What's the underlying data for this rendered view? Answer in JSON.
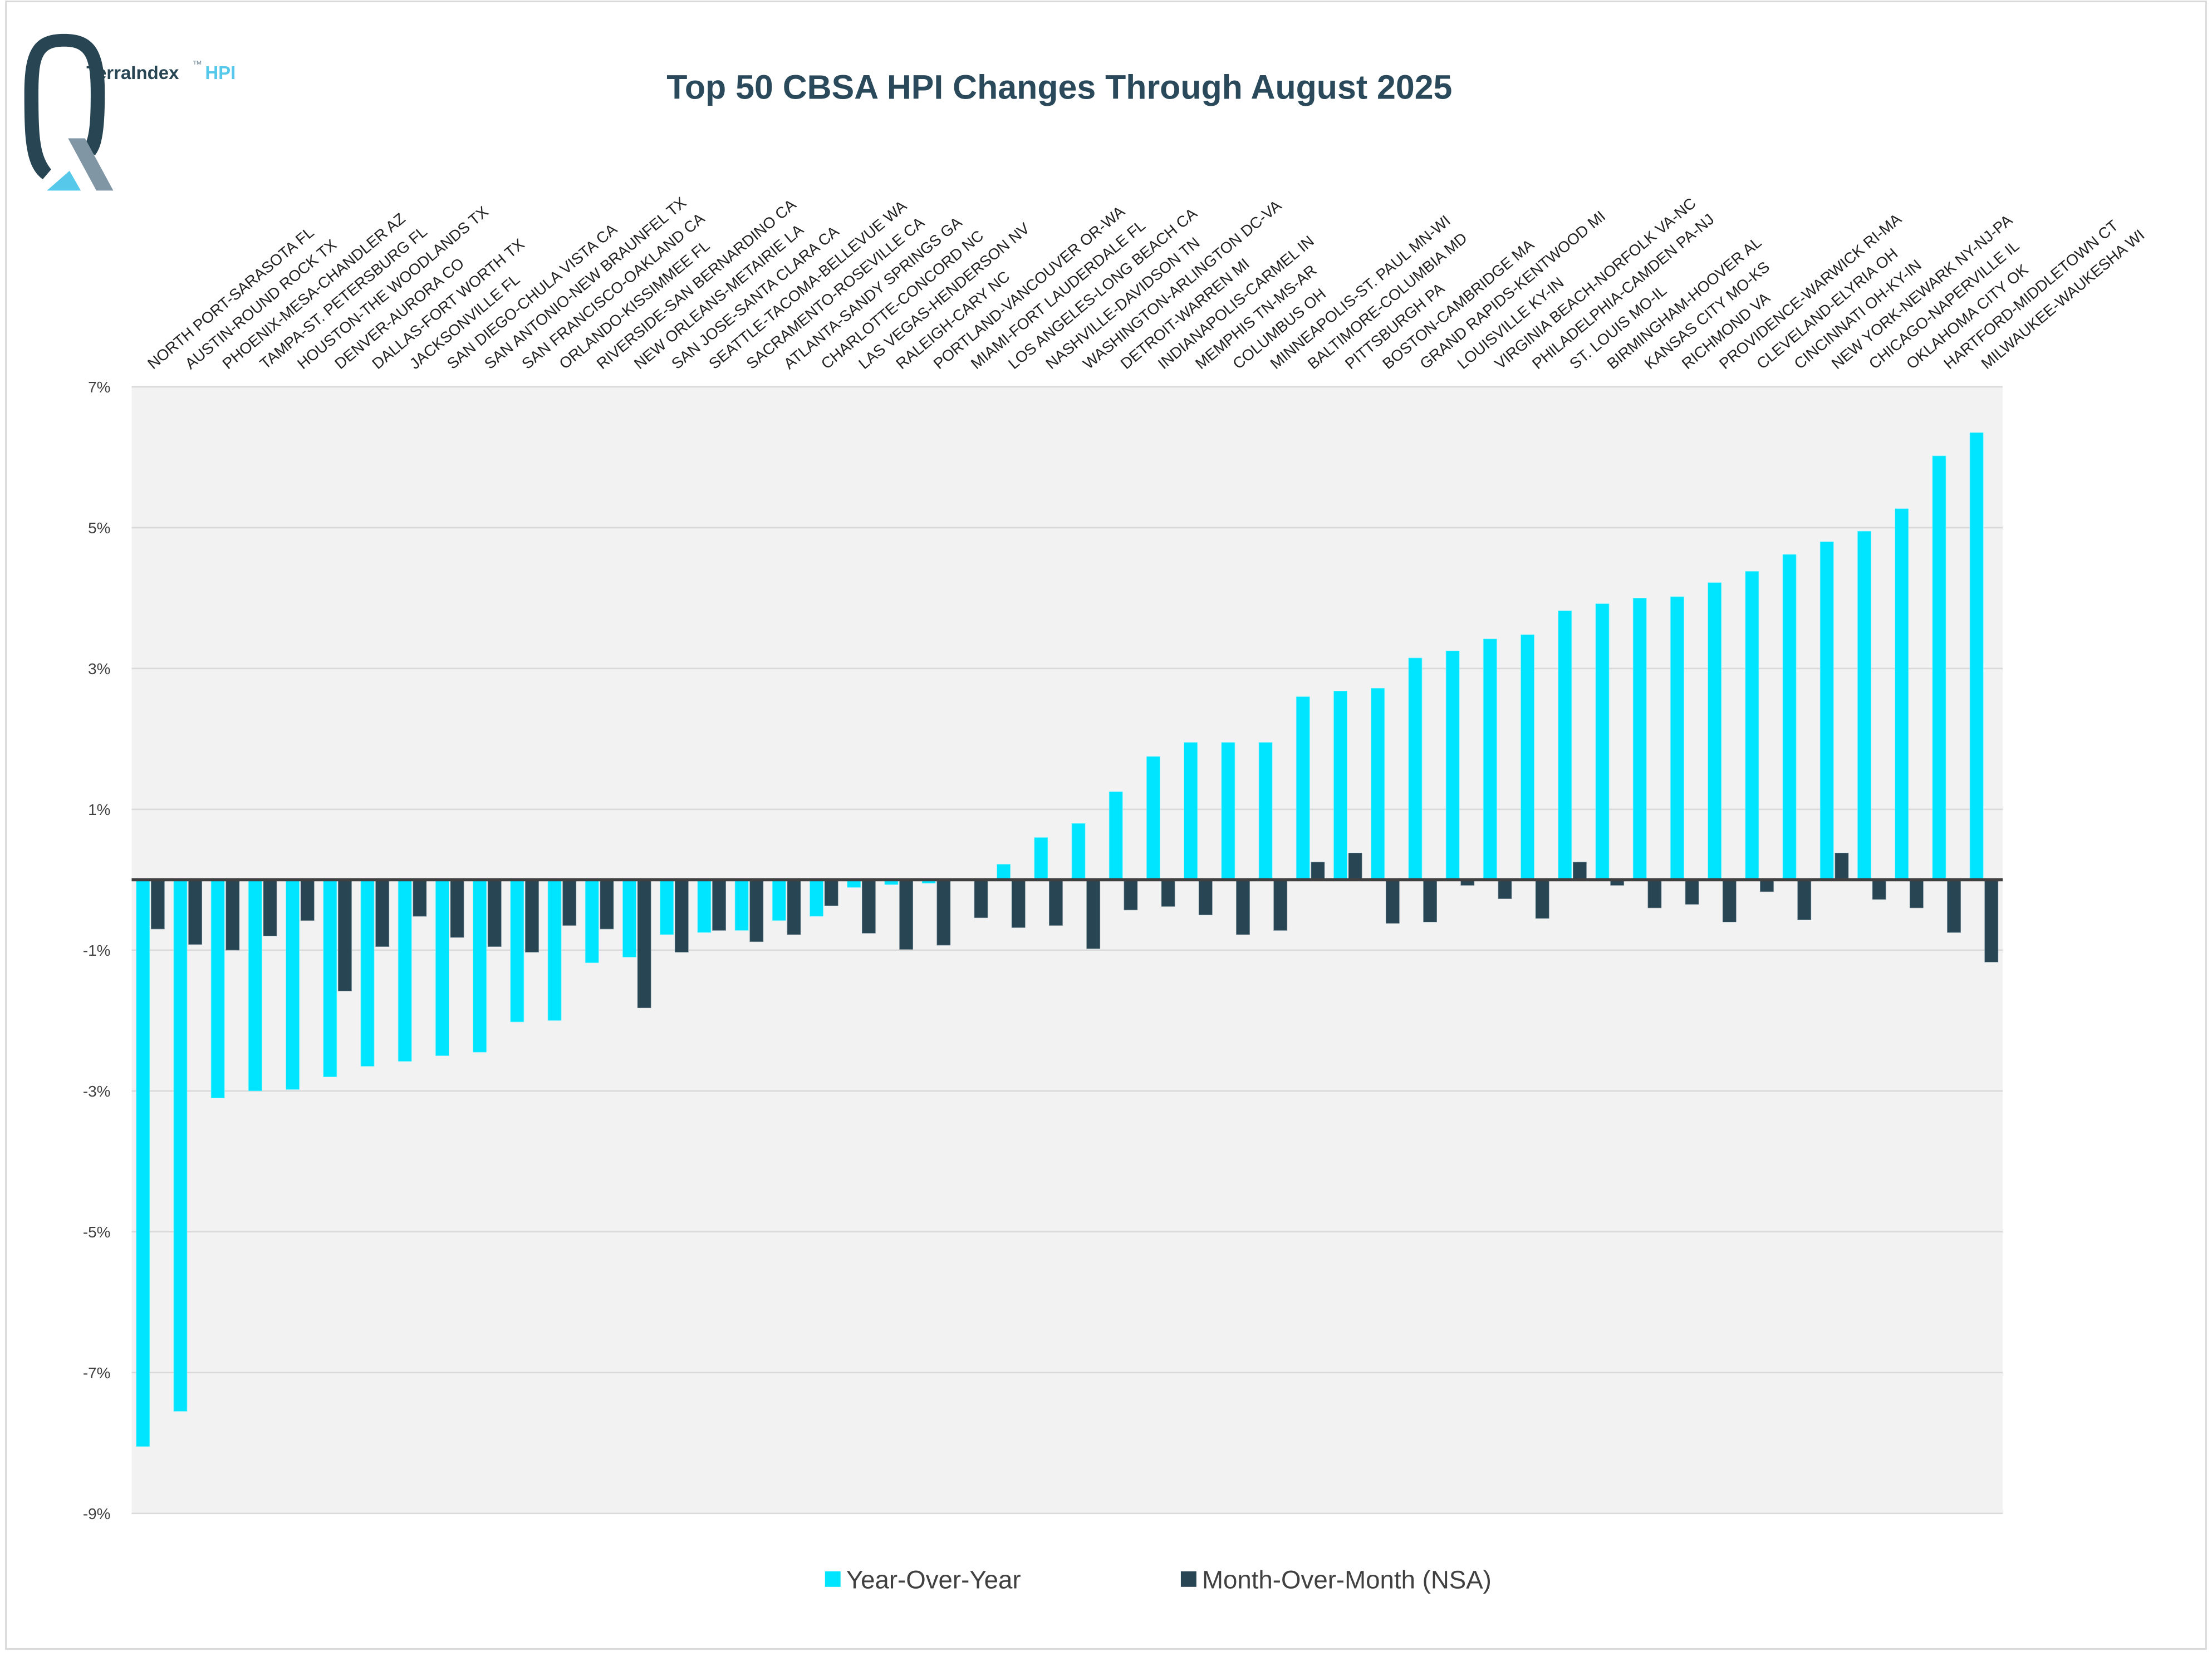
{
  "logo": {
    "brand": "TerraIndex",
    "tm": "™",
    "product": "HPI"
  },
  "colors": {
    "yoy": "#00e5ff",
    "mom": "#284554",
    "title": "#2a4a5c",
    "plot_bg": "#f2f2f2",
    "logo_dark": "#284554",
    "logo_light": "#56c8ea",
    "logo_gray": "#8096a5"
  },
  "chart_data": {
    "type": "bar",
    "title": "Top 50 CBSA HPI Changes Through August 2025",
    "xlabel": "",
    "ylabel": "",
    "ylim": [
      -9,
      7
    ],
    "yticks": [
      7,
      5,
      3,
      1,
      -1,
      -3,
      -5,
      -7,
      -9
    ],
    "ytick_labels": [
      "7%",
      "5%",
      "3%",
      "1%",
      "-1%",
      "-3%",
      "-5%",
      "-7%",
      "-9%"
    ],
    "grid": true,
    "legend": "bottom",
    "categories": [
      "NORTH PORT-SARASOTA FL",
      "AUSTIN-ROUND ROCK TX",
      "PHOENIX-MESA-CHANDLER AZ",
      "TAMPA-ST. PETERSBURG FL",
      "HOUSTON-THE WOODLANDS TX",
      "DENVER-AURORA CO",
      "DALLAS-FORT WORTH TX",
      "JACKSONVILLE FL",
      "SAN DIEGO-CHULA VISTA CA",
      "SAN ANTONIO-NEW BRAUNFEL TX",
      "SAN FRANCISCO-OAKLAND CA",
      "ORLANDO-KISSIMMEE FL",
      "RIVERSIDE-SAN BERNARDINO CA",
      "NEW ORLEANS-METAIRIE LA",
      "SAN JOSE-SANTA CLARA CA",
      "SEATTLE-TACOMA-BELLEVUE WA",
      "SACRAMENTO-ROSEVILLE CA",
      "ATLANTA-SANDY SPRINGS GA",
      "CHARLOTTE-CONCORD NC",
      "LAS VEGAS-HENDERSON NV",
      "RALEIGH-CARY NC",
      "PORTLAND-VANCOUVER OR-WA",
      "MIAMI-FORT LAUDERDALE FL",
      "LOS ANGELES-LONG BEACH CA",
      "NASHVILLE-DAVIDSON TN",
      "WASHINGTON-ARLINGTON DC-VA",
      "DETROIT-WARREN MI",
      "INDIANAPOLIS-CARMEL IN",
      "MEMPHIS TN-MS-AR",
      "COLUMBUS OH",
      "MINNEAPOLIS-ST. PAUL MN-WI",
      "BALTIMORE-COLUMBIA MD",
      "PITTSBURGH PA",
      "BOSTON-CAMBRIDGE MA",
      "GRAND RAPIDS-KENTWOOD MI",
      "LOUISVILLE KY-IN",
      "VIRGINIA BEACH-NORFOLK VA-NC",
      "PHILADELPHIA-CAMDEN PA-NJ",
      "ST. LOUIS MO-IL",
      "BIRMINGHAM-HOOVER AL",
      "KANSAS CITY MO-KS",
      "RICHMOND VA",
      "PROVIDENCE-WARWICK RI-MA",
      "CLEVELAND-ELYRIA OH",
      "CINCINNATI OH-KY-IN",
      "NEW YORK-NEWARK NY-NJ-PA",
      "CHICAGO-NAPERVILLE IL",
      "OKLAHOMA CITY OK",
      "HARTFORD-MIDDLETOWN CT",
      "MILWAUKEE-WAUKESHA WI"
    ],
    "series": [
      {
        "name": "Year-Over-Year",
        "values": [
          -8.05,
          -7.55,
          -3.1,
          -3.0,
          -2.98,
          -2.8,
          -2.65,
          -2.58,
          -2.5,
          -2.45,
          -2.02,
          -2.0,
          -1.18,
          -1.1,
          -0.78,
          -0.75,
          -0.72,
          -0.58,
          -0.52,
          -0.11,
          -0.07,
          -0.05,
          0.0,
          0.22,
          0.6,
          0.8,
          1.25,
          1.75,
          1.95,
          1.95,
          1.95,
          2.6,
          2.68,
          2.72,
          3.15,
          3.25,
          3.42,
          3.48,
          3.82,
          3.92,
          4.0,
          4.02,
          4.22,
          4.38,
          4.62,
          4.8,
          4.95,
          5.27,
          6.02,
          6.35
        ]
      },
      {
        "name": "Month-Over-Month (NSA)",
        "values": [
          -0.7,
          -0.92,
          -1.0,
          -0.8,
          -0.58,
          -1.58,
          -0.95,
          -0.52,
          -0.82,
          -0.95,
          -1.03,
          -0.65,
          -0.7,
          -1.82,
          -1.03,
          -0.72,
          -0.88,
          -0.78,
          -0.37,
          -0.76,
          -0.99,
          -0.93,
          -0.54,
          -0.68,
          -0.65,
          -0.98,
          -0.43,
          -0.38,
          -0.5,
          -0.78,
          -0.72,
          0.25,
          0.38,
          -0.62,
          -0.6,
          -0.08,
          -0.27,
          -0.55,
          0.25,
          -0.08,
          -0.4,
          -0.35,
          -0.6,
          -0.17,
          -0.57,
          0.38,
          -0.28,
          -0.4,
          -0.75,
          -1.17
        ]
      }
    ]
  }
}
